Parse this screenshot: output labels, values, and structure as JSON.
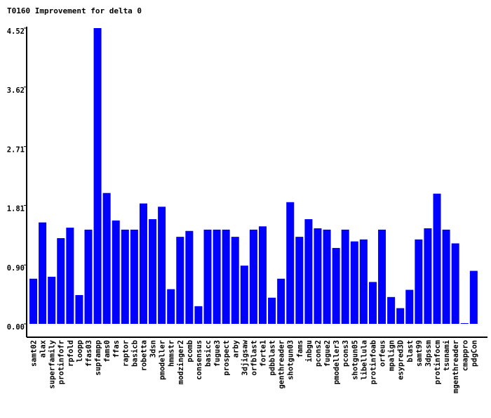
{
  "chart_data": {
    "type": "bar",
    "title": "T0160 Improvement for delta 0",
    "xlabel": "",
    "ylabel": "",
    "ylim": [
      0,
      4.52
    ],
    "yticks": [
      "0.00",
      "0.90",
      "1.81",
      "2.71",
      "3.62",
      "4.52"
    ],
    "grid": false,
    "legend": "none",
    "bar_color": "#0000ff",
    "categories": [
      "samt02",
      "alax",
      "superfamily",
      "protinfofr",
      "rpfold",
      "loopp",
      "ffas03",
      "supfampp",
      "fams0",
      "ffas",
      "raptor",
      "basicb",
      "robetta",
      "3dsn",
      "pmodeller",
      "hmmstr",
      "modzinger2",
      "pcomb",
      "consensus",
      "basicc",
      "fugue3",
      "prospect",
      "arby",
      "3djigsaw",
      "orfblast",
      "forte1",
      "pdbblast",
      "genthreader",
      "shotgun03",
      "fams",
      "inbgu",
      "pcons2",
      "fugue2",
      "pmodeller3",
      "pcons3",
      "shotgun05",
      "libellula",
      "protinfoab",
      "orfeus",
      "mpalign",
      "esypred3D",
      "blast",
      "samt99",
      "3dpssm",
      "protinfocm",
      "tsunami",
      "mgenthreader",
      "cmappro",
      "pdgCon"
    ],
    "values": [
      0.69,
      1.55,
      0.72,
      1.31,
      1.47,
      0.44,
      1.44,
      4.52,
      2.0,
      1.58,
      1.44,
      1.44,
      1.84,
      1.6,
      1.79,
      0.53,
      1.33,
      1.42,
      0.27,
      1.44,
      1.44,
      1.44,
      1.33,
      0.89,
      1.44,
      1.49,
      0.4,
      0.69,
      1.86,
      1.33,
      1.6,
      1.46,
      1.44,
      1.16,
      1.44,
      1.26,
      1.29,
      0.64,
      1.44,
      0.41,
      0.24,
      0.52,
      1.29,
      1.46,
      1.99,
      1.44,
      1.23,
      0.01,
      0.81
    ]
  }
}
